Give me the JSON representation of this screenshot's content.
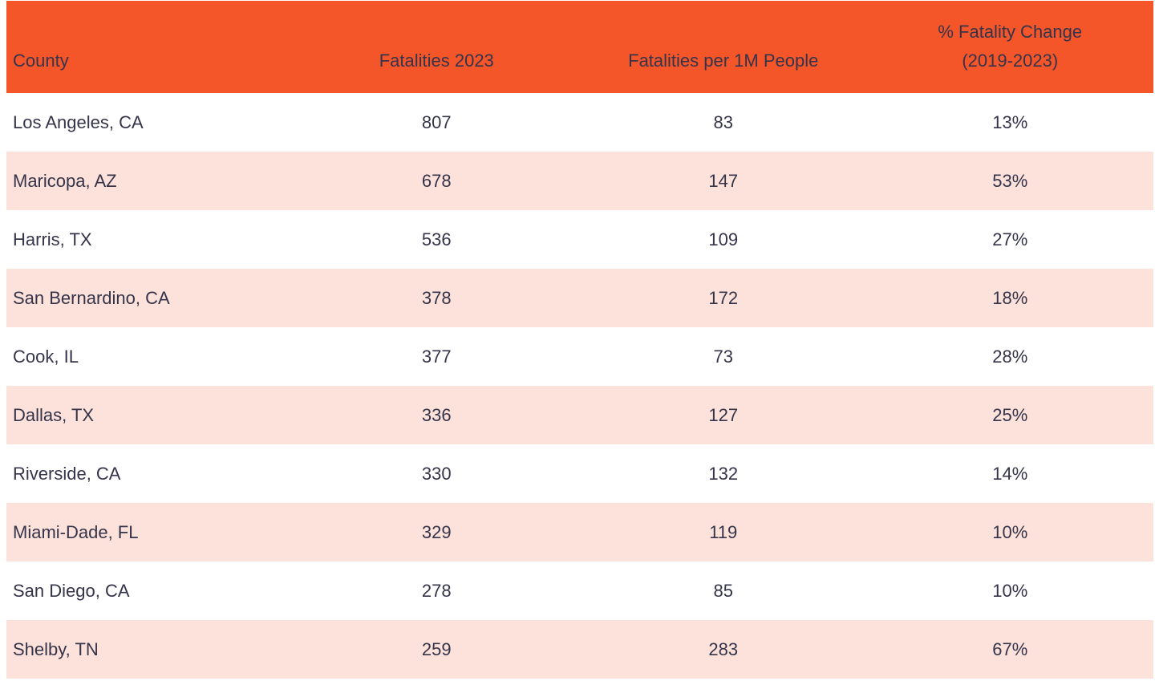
{
  "colors": {
    "header_bg": "#F4562A",
    "stripe_bg": "#FCE2DA",
    "row_bg": "#FFFFFF",
    "text_dark": "#35344A"
  },
  "chart_data": {
    "type": "table",
    "title": "",
    "columns": [
      {
        "id": "county",
        "label": "County",
        "align": "left"
      },
      {
        "id": "fatalities_2023",
        "label": "Fatalities 2023",
        "align": "center"
      },
      {
        "id": "fatalities_per_1m",
        "label": "Fatalities per 1M People",
        "align": "center"
      },
      {
        "id": "pct_change",
        "label": "% Fatality Change\n(2019-2023)",
        "align": "center"
      }
    ],
    "rows": [
      {
        "county": "Los Angeles, CA",
        "fatalities_2023": "807",
        "fatalities_per_1m": "83",
        "pct_change": "13%"
      },
      {
        "county": "Maricopa, AZ",
        "fatalities_2023": "678",
        "fatalities_per_1m": "147",
        "pct_change": "53%"
      },
      {
        "county": "Harris, TX",
        "fatalities_2023": "536",
        "fatalities_per_1m": "109",
        "pct_change": "27%"
      },
      {
        "county": "San Bernardino, CA",
        "fatalities_2023": "378",
        "fatalities_per_1m": "172",
        "pct_change": "18%"
      },
      {
        "county": "Cook, IL",
        "fatalities_2023": "377",
        "fatalities_per_1m": "73",
        "pct_change": "28%"
      },
      {
        "county": "Dallas, TX",
        "fatalities_2023": "336",
        "fatalities_per_1m": "127",
        "pct_change": "25%"
      },
      {
        "county": "Riverside, CA",
        "fatalities_2023": "330",
        "fatalities_per_1m": "132",
        "pct_change": "14%"
      },
      {
        "county": "Miami-Dade, FL",
        "fatalities_2023": "329",
        "fatalities_per_1m": "119",
        "pct_change": "10%"
      },
      {
        "county": "San Diego, CA",
        "fatalities_2023": "278",
        "fatalities_per_1m": "85",
        "pct_change": "10%"
      },
      {
        "county": "Shelby, TN",
        "fatalities_2023": "259",
        "fatalities_per_1m": "283",
        "pct_change": "67%"
      }
    ]
  }
}
